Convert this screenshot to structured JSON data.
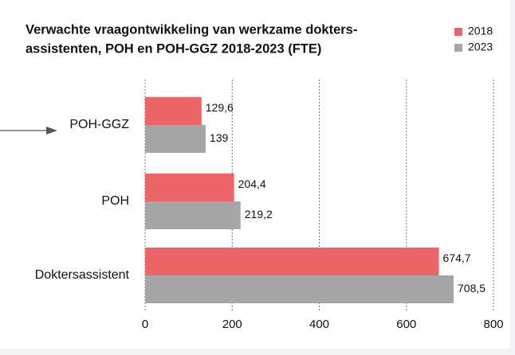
{
  "chart_data": {
    "type": "hbar",
    "title": [
      "Verwachte vraagontwikkeling van werkzame dokters-",
      "assistenten, POH en POH-GGZ 2018-2023 (FTE)"
    ],
    "categories": [
      "POH-GGZ",
      "POH",
      "Doktersassistent"
    ],
    "series": [
      {
        "name": "2018",
        "color": "#ec6468",
        "values": [
          129.6,
          204.4,
          674.7
        ],
        "value_labels": [
          "129,6",
          "204,4",
          "674,7"
        ]
      },
      {
        "name": "2023",
        "color": "#a6a6a6",
        "values": [
          139,
          219.2,
          708.5
        ],
        "value_labels": [
          "139",
          "219,2",
          "708,5"
        ]
      }
    ],
    "xlim": [
      0,
      800
    ],
    "xticks": [
      0,
      200,
      400,
      600,
      800
    ],
    "grid": true,
    "legend": "top-right"
  }
}
